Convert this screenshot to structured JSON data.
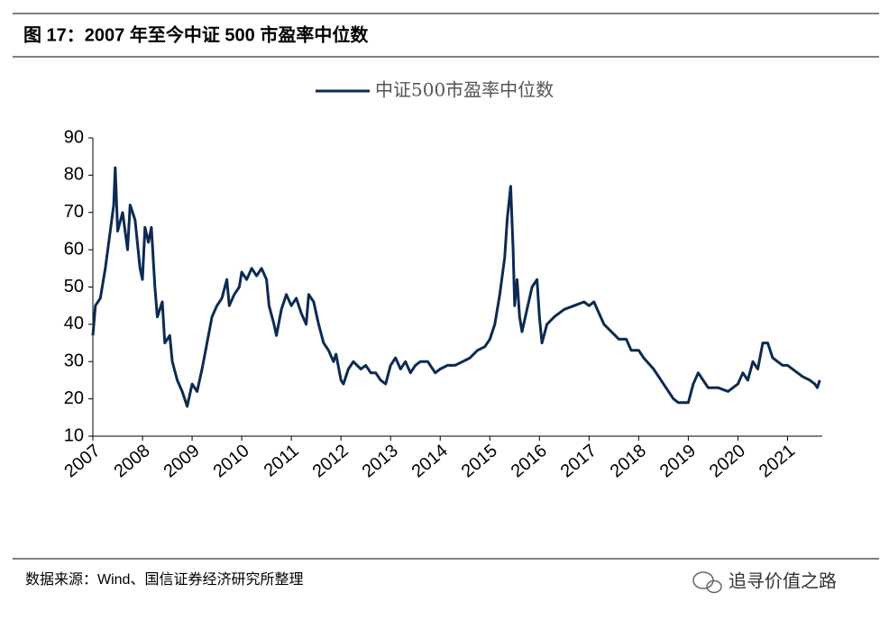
{
  "header": {
    "title": "图 17：2007 年至今中证 500 市盈率中位数"
  },
  "chart_data": {
    "type": "line",
    "series": [
      {
        "name": "中证500市盈率中位数",
        "color": "#0c2a52",
        "x": [
          2007.0,
          2007.05,
          2007.15,
          2007.25,
          2007.35,
          2007.42,
          2007.45,
          2007.5,
          2007.6,
          2007.7,
          2007.75,
          2007.85,
          2007.95,
          2008.0,
          2008.05,
          2008.12,
          2008.18,
          2008.25,
          2008.3,
          2008.4,
          2008.45,
          2008.55,
          2008.6,
          2008.7,
          2008.8,
          2008.9,
          2009.0,
          2009.1,
          2009.2,
          2009.3,
          2009.4,
          2009.5,
          2009.6,
          2009.7,
          2009.75,
          2009.85,
          2009.95,
          2010.0,
          2010.1,
          2010.2,
          2010.3,
          2010.4,
          2010.5,
          2010.55,
          2010.65,
          2010.7,
          2010.8,
          2010.9,
          2011.0,
          2011.1,
          2011.2,
          2011.3,
          2011.35,
          2011.45,
          2011.55,
          2011.65,
          2011.75,
          2011.85,
          2011.9,
          2012.0,
          2012.05,
          2012.15,
          2012.25,
          2012.4,
          2012.5,
          2012.6,
          2012.7,
          2012.8,
          2012.9,
          2013.0,
          2013.1,
          2013.2,
          2013.3,
          2013.4,
          2013.5,
          2013.6,
          2013.75,
          2013.9,
          2014.0,
          2014.15,
          2014.3,
          2014.45,
          2014.6,
          2014.75,
          2014.9,
          2015.0,
          2015.1,
          2015.2,
          2015.3,
          2015.35,
          2015.42,
          2015.47,
          2015.5,
          2015.55,
          2015.6,
          2015.65,
          2015.75,
          2015.85,
          2015.95,
          2016.0,
          2016.05,
          2016.15,
          2016.3,
          2016.5,
          2016.7,
          2016.9,
          2017.0,
          2017.1,
          2017.2,
          2017.3,
          2017.45,
          2017.6,
          2017.75,
          2017.85,
          2018.0,
          2018.1,
          2018.3,
          2018.5,
          2018.7,
          2018.8,
          2019.0,
          2019.1,
          2019.2,
          2019.3,
          2019.4,
          2019.6,
          2019.8,
          2020.0,
          2020.1,
          2020.2,
          2020.3,
          2020.4,
          2020.5,
          2020.6,
          2020.7,
          2020.8,
          2020.9,
          2021.0,
          2021.2,
          2021.3,
          2021.45,
          2021.55,
          2021.6,
          2021.65
        ],
        "values": [
          37,
          45,
          47,
          55,
          65,
          72,
          82,
          65,
          70,
          60,
          72,
          68,
          55,
          52,
          66,
          62,
          66,
          50,
          42,
          46,
          35,
          37,
          30,
          25,
          22,
          18,
          24,
          22,
          28,
          35,
          42,
          45,
          47,
          52,
          45,
          48,
          50,
          54,
          52,
          55,
          53,
          55,
          52,
          45,
          40,
          37,
          44,
          48,
          45,
          47,
          43,
          40,
          48,
          46,
          40,
          35,
          33,
          30,
          32,
          25,
          24,
          28,
          30,
          28,
          29,
          27,
          27,
          25,
          24,
          29,
          31,
          28,
          30,
          27,
          29,
          30,
          30,
          27,
          28,
          29,
          29,
          30,
          31,
          33,
          34,
          36,
          40,
          48,
          58,
          68,
          77,
          60,
          45,
          52,
          42,
          38,
          44,
          50,
          52,
          42,
          35,
          40,
          42,
          44,
          45,
          46,
          45,
          46,
          43,
          40,
          38,
          36,
          36,
          33,
          33,
          31,
          28,
          24,
          20,
          19,
          19,
          24,
          27,
          25,
          23,
          23,
          22,
          24,
          27,
          25,
          30,
          28,
          35,
          35,
          31,
          30,
          29,
          29,
          27,
          26,
          25,
          24,
          23,
          25
        ]
      }
    ],
    "xlim": [
      2007,
      2021.7
    ],
    "xticks": [
      2007,
      2008,
      2009,
      2010,
      2011,
      2012,
      2013,
      2014,
      2015,
      2016,
      2017,
      2018,
      2019,
      2020,
      2021
    ],
    "ylim": [
      10,
      90
    ],
    "yticks": [
      10,
      20,
      30,
      40,
      50,
      60,
      70,
      80,
      90
    ],
    "legend": "top"
  },
  "footer": {
    "source": "数据来源：Wind、国信证券经济研究所整理",
    "watermark": "追寻价值之路"
  }
}
